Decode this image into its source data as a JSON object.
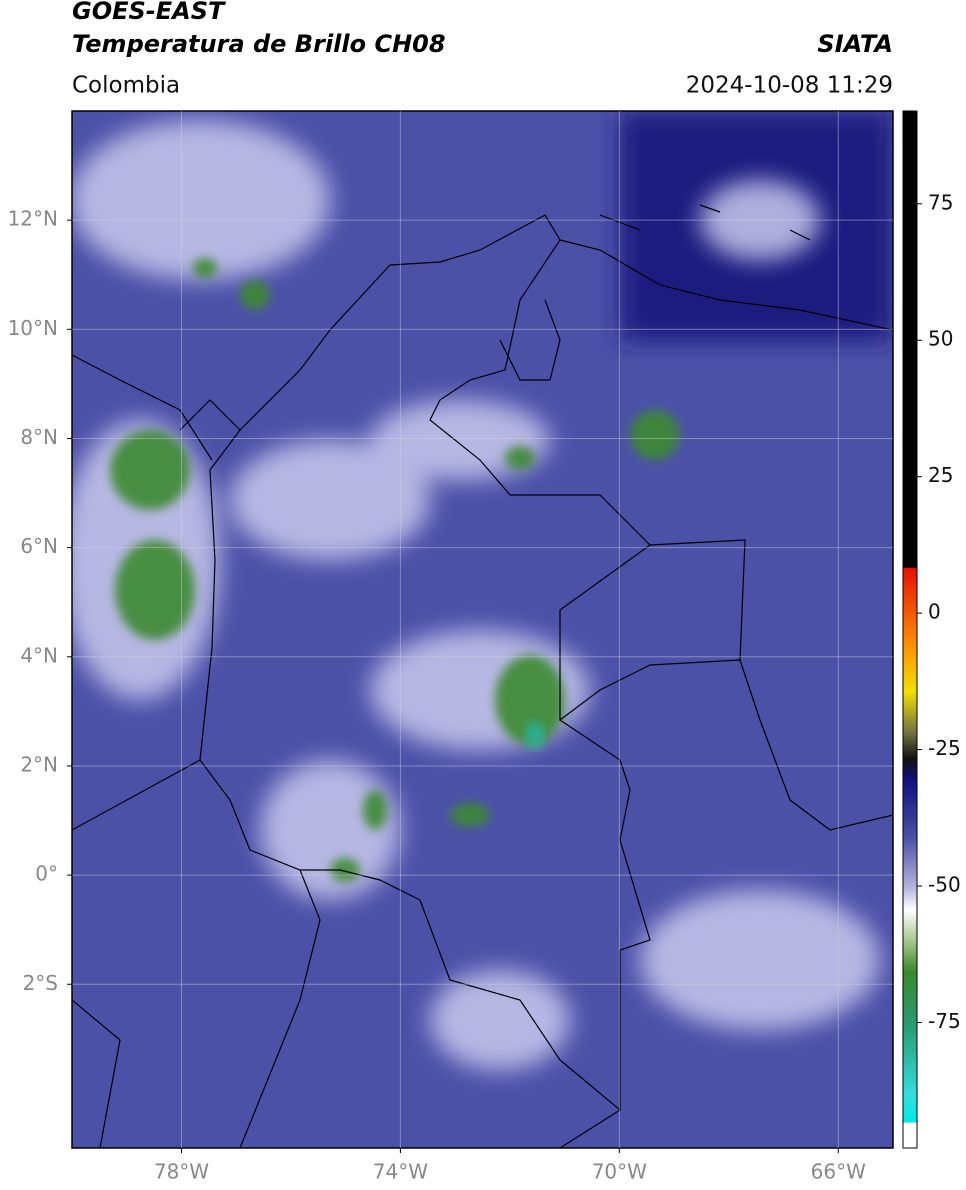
{
  "header": {
    "satellite": "GOES-EAST",
    "product": "Temperatura de Brillo CH08",
    "source": "SIATA",
    "region": "Colombia",
    "datetime": "2024-10-08 11:29"
  },
  "map": {
    "lonlim": [
      -80,
      -65
    ],
    "latlim": [
      -5,
      14
    ],
    "lonticks": [
      {
        "value": -78,
        "label": "78°W"
      },
      {
        "value": -74,
        "label": "74°W"
      },
      {
        "value": -70,
        "label": "70°W"
      },
      {
        "value": -66,
        "label": "66°W"
      }
    ],
    "latticks": [
      {
        "value": 12,
        "label": "12°N"
      },
      {
        "value": 10,
        "label": "10°N"
      },
      {
        "value": 8,
        "label": "8°N"
      },
      {
        "value": 6,
        "label": "6°N"
      },
      {
        "value": 4,
        "label": "4°N"
      },
      {
        "value": 2,
        "label": "2°N"
      },
      {
        "value": 0,
        "label": "0°"
      },
      {
        "value": -2,
        "label": "2°S"
      }
    ],
    "grid": true
  },
  "colorbar": {
    "lim": [
      -98,
      92
    ],
    "ticks": [
      75,
      50,
      25,
      0,
      -25,
      -50,
      -75
    ]
  }
}
